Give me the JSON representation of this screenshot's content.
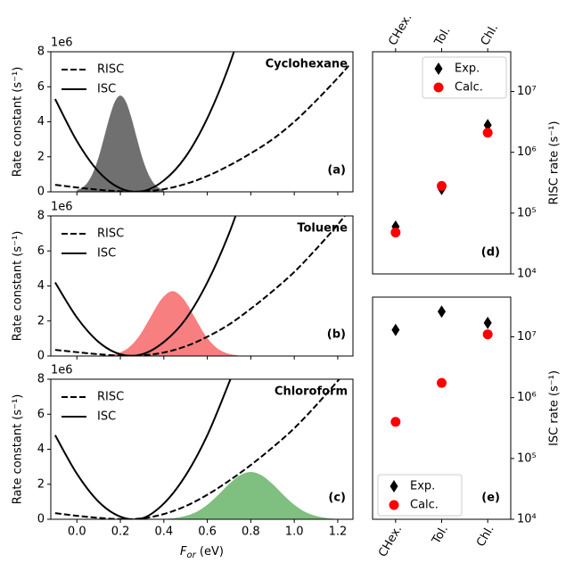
{
  "chart_data": [
    {
      "type": "line",
      "title": "Cyclohexane",
      "annotation": "(a)",
      "offset_label": "1e6",
      "ylabel": "Rate constant (s⁻¹)",
      "legend": "upper left",
      "xlim": [
        -0.12,
        1.27
      ],
      "ylim": [
        0,
        8
      ],
      "yticks": [
        0,
        2,
        4,
        6,
        8
      ],
      "series": [
        {
          "name": "RISC",
          "color": "#000000",
          "dash": true,
          "x": [
            -0.1,
            0,
            0.1,
            0.2,
            0.3,
            0.4,
            0.5,
            0.6,
            0.7,
            0.8,
            0.9,
            1.0,
            1.1,
            1.2,
            1.25
          ],
          "values": [
            0.4,
            0.25,
            0.12,
            0.03,
            0.02,
            0.15,
            0.45,
            0.9,
            1.5,
            2.2,
            3.0,
            4.0,
            5.2,
            6.5,
            7.2
          ]
        },
        {
          "name": "ISC",
          "color": "#000000",
          "dash": false,
          "x": [
            -0.1,
            0,
            0.1,
            0.2,
            0.3,
            0.4,
            0.5,
            0.6,
            0.7,
            0.8
          ],
          "values": [
            5.3,
            2.9,
            1.15,
            0.2,
            0.03,
            0.65,
            2.0,
            4.2,
            7.2,
            11.0
          ]
        },
        {
          "color": "#707070",
          "fill": true,
          "x": [
            0,
            0.025,
            0.05,
            0.075,
            0.1,
            0.125,
            0.15,
            0.175,
            0.2,
            0.225,
            0.25,
            0.275,
            0.3,
            0.325,
            0.35,
            0.375,
            0.4
          ],
          "values": [
            0.09,
            0.24,
            0.55,
            1.12,
            1.98,
            3.1,
            4.26,
            5.16,
            5.5,
            5.16,
            4.26,
            3.1,
            1.98,
            1.12,
            0.55,
            0.24,
            0.09
          ]
        }
      ]
    },
    {
      "type": "line",
      "title": "Toluene",
      "annotation": "(b)",
      "offset_label": "1e6",
      "ylabel": "Rate constant (s⁻¹)",
      "legend": "upper left",
      "xlim": [
        -0.12,
        1.27
      ],
      "ylim": [
        0,
        8
      ],
      "yticks": [
        0,
        2,
        4,
        6,
        8
      ],
      "series": [
        {
          "name": "RISC",
          "color": "#000000",
          "dash": true,
          "x": [
            -0.1,
            0,
            0.1,
            0.2,
            0.3,
            0.4,
            0.5,
            0.6,
            0.7,
            0.8,
            0.9,
            1.0,
            1.1,
            1.2,
            1.25
          ],
          "values": [
            0.35,
            0.22,
            0.1,
            0.02,
            0.03,
            0.2,
            0.55,
            1.1,
            1.8,
            2.7,
            3.7,
            4.8,
            6.1,
            7.5,
            8.3
          ]
        },
        {
          "name": "ISC",
          "color": "#000000",
          "dash": false,
          "x": [
            -0.1,
            0,
            0.1,
            0.2,
            0.3,
            0.4,
            0.5,
            0.6,
            0.7,
            0.8
          ],
          "values": [
            4.2,
            2.2,
            0.8,
            0.1,
            0.1,
            0.8,
            2.1,
            4.2,
            7.0,
            10.5
          ]
        },
        {
          "color": "#f77f7f",
          "fill": true,
          "x": [
            0.14,
            0.19,
            0.24,
            0.29,
            0.34,
            0.39,
            0.44,
            0.49,
            0.54,
            0.59,
            0.64,
            0.69,
            0.74
          ],
          "values": [
            0.04,
            0.16,
            0.5,
            1.2,
            2.25,
            3.26,
            3.7,
            3.26,
            2.25,
            1.2,
            0.5,
            0.16,
            0.04
          ]
        }
      ]
    },
    {
      "type": "line",
      "title": "Chloroform",
      "annotation": "(c)",
      "offset_label": "1e6",
      "ylabel": "Rate constant (s⁻¹)",
      "legend": "upper left",
      "xlabel": {
        "symbol": "F",
        "subscript": "or",
        "unit": "(eV)"
      },
      "xlim": [
        -0.12,
        1.27
      ],
      "xticks": [
        {
          "value": 0,
          "label": "0.0"
        },
        0.2,
        0.4,
        0.6,
        0.8,
        {
          "value": 1,
          "label": "1.0"
        },
        1.2
      ],
      "ylim": [
        0,
        8
      ],
      "yticks": [
        0,
        2,
        4,
        6,
        8
      ],
      "series": [
        {
          "name": "RISC",
          "color": "#000000",
          "dash": true,
          "x": [
            -0.1,
            0,
            0.1,
            0.2,
            0.3,
            0.4,
            0.5,
            0.6,
            0.7,
            0.8,
            0.9,
            1.0,
            1.1,
            1.2,
            1.25
          ],
          "values": [
            0.35,
            0.2,
            0.08,
            0.01,
            0.05,
            0.3,
            0.75,
            1.4,
            2.2,
            3.1,
            4.1,
            5.2,
            6.5,
            7.9,
            8.6
          ]
        },
        {
          "name": "ISC",
          "color": "#000000",
          "dash": false,
          "x": [
            -0.1,
            0,
            0.1,
            0.2,
            0.3,
            0.4,
            0.5,
            0.6,
            0.7,
            0.8
          ],
          "values": [
            4.8,
            2.6,
            1.0,
            0.15,
            0.05,
            0.9,
            2.5,
            4.8,
            7.8,
            11.0
          ]
        },
        {
          "color": "#7fbf7f",
          "fill": true,
          "x": [
            0.4,
            0.45,
            0.5,
            0.55,
            0.6,
            0.65,
            0.7,
            0.75,
            0.8,
            0.85,
            0.9,
            0.95,
            1.0,
            1.05,
            1.1,
            1.15,
            1.2
          ],
          "values": [
            0.02,
            0.07,
            0.19,
            0.42,
            0.83,
            1.39,
            2.01,
            2.51,
            2.7,
            2.51,
            2.01,
            1.39,
            0.83,
            0.42,
            0.19,
            0.07,
            0.02
          ]
        }
      ]
    },
    {
      "type": "scatter",
      "annotation": "(d)",
      "ylabel": "RISC rate (s⁻¹)",
      "log_scale": true,
      "legend": "upper right",
      "category_side": "top",
      "categories": [
        "CHex.",
        "Tol.",
        "Chl."
      ],
      "ylim": [
        10000,
        45000000
      ],
      "yticks": [
        {
          "value": 10000,
          "label": "10⁴"
        },
        {
          "value": 100000,
          "label": "10⁵"
        },
        {
          "value": 1000000,
          "label": "10⁶"
        },
        {
          "value": 10000000,
          "label": "10⁷"
        }
      ],
      "series": [
        {
          "name": "Exp.",
          "color": "#000000",
          "marker": "diamond",
          "values": [
            60000,
            250000,
            2800000
          ]
        },
        {
          "name": "Calc.",
          "color": "#ff0000",
          "marker": "circle",
          "values": [
            48000,
            280000,
            2100000
          ]
        }
      ]
    },
    {
      "type": "scatter",
      "annotation": "(e)",
      "ylabel": "ISC rate (s⁻¹)",
      "log_scale": true,
      "legend": "lower left",
      "category_side": "bottom",
      "categories": [
        "CHex.",
        "Tol.",
        "Chl."
      ],
      "ylim": [
        10000,
        45000000
      ],
      "yticks": [
        {
          "value": 10000,
          "label": "10⁴"
        },
        {
          "value": 100000,
          "label": "10⁵"
        },
        {
          "value": 1000000,
          "label": "10⁶"
        },
        {
          "value": 10000000,
          "label": "10⁷"
        }
      ],
      "series": [
        {
          "name": "Exp.",
          "color": "#000000",
          "marker": "diamond",
          "values": [
            13000000,
            26000000,
            17000000
          ]
        },
        {
          "name": "Calc.",
          "color": "#ff0000",
          "marker": "circle",
          "values": [
            400000,
            1750000,
            11000000
          ]
        }
      ]
    }
  ]
}
